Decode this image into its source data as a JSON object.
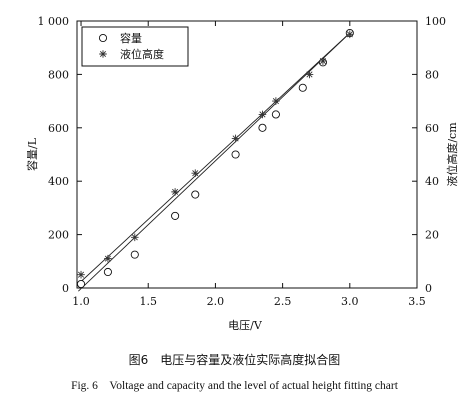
{
  "caption_cn": "图6　电压与容量及液位实际高度拟合图",
  "caption_en": "Fig. 6　Voltage and capacity and the level of actual height fitting chart",
  "chart_data": {
    "type": "scatter",
    "xlabel": "电压/V",
    "ylabel_left": "容量/L",
    "ylabel_right": "液位高度/cm",
    "xlim": [
      0.97,
      3.5
    ],
    "ylim_left": [
      0,
      1000
    ],
    "ylim_right": [
      0,
      100
    ],
    "x_ticks": [
      "1.0",
      "1.5",
      "2.0",
      "2.5",
      "3.0",
      "3.5"
    ],
    "x_tick_values": [
      1.0,
      1.5,
      2.0,
      2.5,
      3.0,
      3.5
    ],
    "y_left_ticks": [
      "0",
      "200",
      "400",
      "600",
      "800",
      "1 000"
    ],
    "y_left_tick_values": [
      0,
      200,
      400,
      600,
      800,
      1000
    ],
    "y_right_ticks": [
      "0",
      "20",
      "40",
      "60",
      "80",
      "100"
    ],
    "y_right_tick_values": [
      0,
      20,
      40,
      60,
      80,
      100
    ],
    "legend_position": "top-left",
    "grid": false,
    "series": [
      {
        "name": "容量",
        "axis": "left",
        "marker": "circle",
        "x": [
          1.0,
          1.2,
          1.4,
          1.7,
          1.85,
          2.15,
          2.35,
          2.45,
          2.65,
          2.8,
          3.0
        ],
        "y": [
          15,
          60,
          125,
          270,
          350,
          500,
          600,
          650,
          750,
          845,
          955
        ],
        "fit": {
          "x": [
            0.98,
            3.0
          ],
          "y": [
            -12,
            955
          ]
        }
      },
      {
        "name": "液位高度",
        "axis": "right",
        "marker": "asterisk",
        "x": [
          1.0,
          1.2,
          1.4,
          1.7,
          1.85,
          2.15,
          2.35,
          2.45,
          2.7,
          2.8,
          3.0
        ],
        "y": [
          5,
          11,
          19,
          36,
          43,
          56,
          65,
          70,
          80,
          85,
          95
        ],
        "fit": {
          "x": [
            0.98,
            3.0
          ],
          "y": [
            1.5,
            95.5
          ]
        }
      }
    ]
  }
}
